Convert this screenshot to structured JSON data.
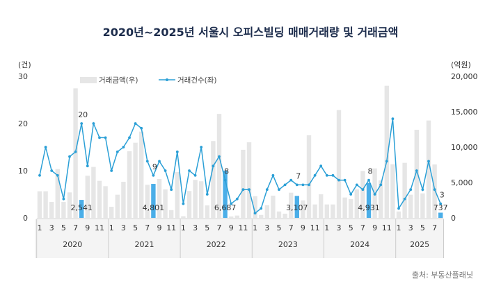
{
  "chart_data": {
    "type": "bar+line",
    "title": "2020년~2025년 서울시 오피스빌딩 매매거래량 및 거래금액",
    "left_axis": {
      "unit": "(건)",
      "ylim": [
        0,
        30
      ],
      "ticks": [
        "0",
        "10",
        "20",
        "30"
      ]
    },
    "right_axis": {
      "unit": "(억원)",
      "ylim": [
        0,
        20000
      ],
      "ticks": [
        "0",
        "5,000",
        "10,000",
        "15,000",
        "20,000"
      ]
    },
    "legend": {
      "placement": "top-left",
      "bar_label": "거래금액(우)",
      "line_label": "거래건수(좌)"
    },
    "years": [
      "2020",
      "2021",
      "2022",
      "2023",
      "2024",
      "2025"
    ],
    "month_tick_labels": [
      "1",
      "3",
      "5",
      "7",
      "9",
      "11"
    ],
    "series": [
      {
        "name": "거래금액(우)",
        "axis": "right",
        "values": {
          "2020": [
            3760,
            3760,
            2250,
            6900,
            2250,
            3600,
            18300,
            2541,
            5950,
            7200,
            5230,
            4480
          ],
          "2021": [
            1570,
            3270,
            5100,
            9410,
            10620,
            12190,
            4670,
            4801,
            5490,
            4020,
            1100,
            6470
          ],
          "2022": [
            230,
            3800,
            5370,
            5170,
            1760,
            10860,
            14700,
            6687,
            200,
            330,
            9620,
            10680
          ],
          "2023": [
            3070,
            420,
            1800,
            3140,
            900,
            590,
            3560,
            3107,
            2480,
            11670,
            1900,
            3330
          ],
          "2024": [
            1900,
            1900,
            15230,
            2880,
            2650,
            4020,
            6630,
            4931,
            6990,
            5300,
            18660,
            7580
          ],
          "2025": [
            900,
            7780,
            3270,
            12450,
            3460,
            13760,
            7550,
            737
          ]
        }
      },
      {
        "name": "거래건수(좌)",
        "axis": "left",
        "values": {
          "2020": [
            9,
            15,
            10,
            9,
            4,
            13,
            14,
            20,
            11,
            20,
            17,
            17
          ],
          "2021": [
            10,
            14,
            15,
            17,
            20,
            19,
            12,
            9,
            12,
            10,
            6,
            14
          ],
          "2022": [
            3,
            10,
            9,
            15,
            5,
            11,
            13,
            8,
            3,
            4,
            6,
            6
          ],
          "2023": [
            1,
            2,
            6,
            9,
            6,
            7,
            8,
            7,
            7,
            7,
            9,
            11
          ],
          "2024": [
            9,
            9,
            8,
            8,
            5,
            7,
            6,
            8,
            5,
            7,
            12,
            21
          ],
          "2025": [
            2,
            4,
            6,
            10,
            6,
            12,
            6,
            3
          ]
        }
      }
    ],
    "highlighted_month": 8,
    "bar_data_labels": [
      "2,541",
      "4,801",
      "6,687",
      "3,107",
      "4,931",
      "737"
    ],
    "line_data_labels": [
      "20",
      "9",
      "8",
      "7",
      "8",
      "3"
    ],
    "colors": {
      "bar": "#e6e6e6",
      "highlight_bar": "#4aaee8",
      "line": "#2a9fd6",
      "title": "#1b2b4b",
      "band": "#f4f4f4"
    }
  },
  "source": "출처: 부동산플래닛"
}
